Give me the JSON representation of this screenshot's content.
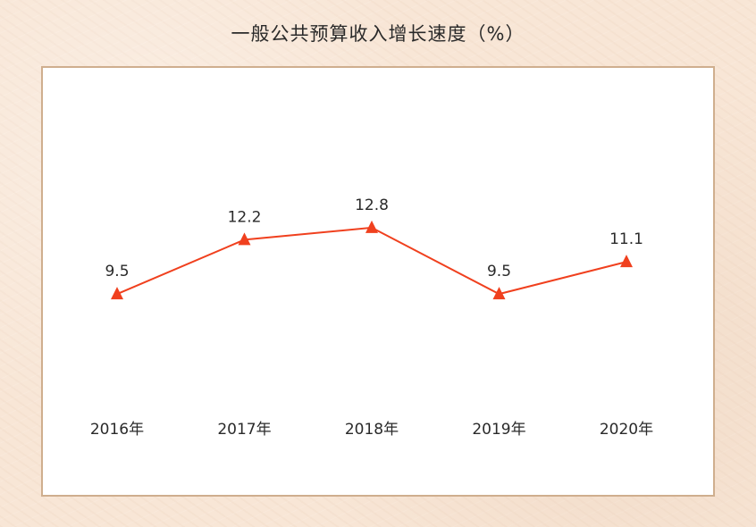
{
  "chart_data": {
    "type": "line",
    "title": "一般公共预算收入增长速度（%）",
    "categories": [
      "2016年",
      "2017年",
      "2018年",
      "2019年",
      "2020年"
    ],
    "series": [
      {
        "values": [
          9.5,
          12.2,
          12.8,
          9.5,
          11.1
        ],
        "data_labels": [
          "9.5",
          "12.2",
          "12.8",
          "9.5",
          "11.1"
        ]
      }
    ],
    "xlabel": "",
    "ylabel": "",
    "grid": false,
    "legend": "none",
    "marker": "triangle",
    "colors": {
      "line": "#f0401e",
      "marker": "#f0401e",
      "panel_border": "#cfae8e",
      "background": "#f8e6d6"
    }
  }
}
